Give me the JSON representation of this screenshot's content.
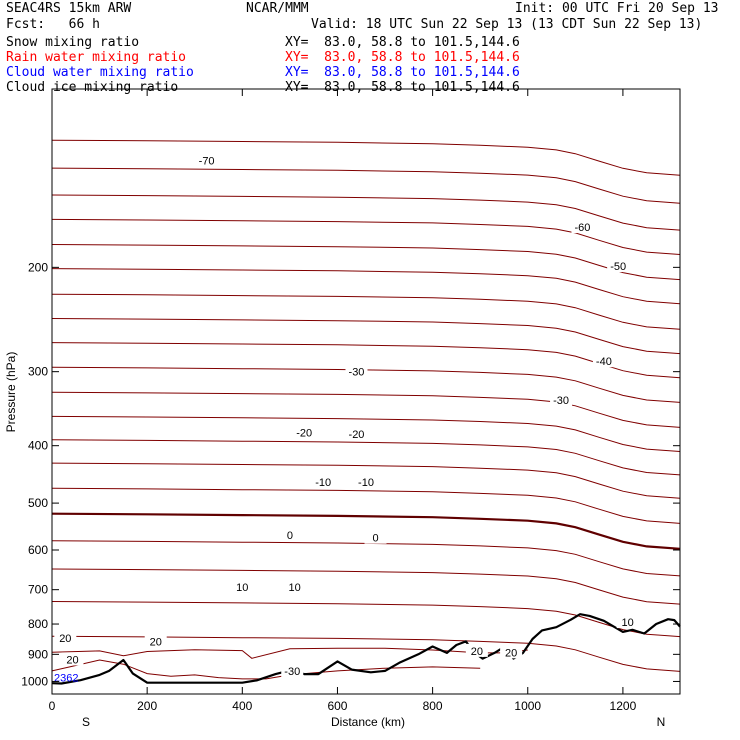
{
  "header": {
    "model": "SEAC4RS 15km ARW",
    "org": "NCAR/MMM",
    "init": "Init: 00 UTC Fri 20 Sep 13",
    "fcst": "Fcst:   66 h",
    "valid": "Valid: 18 UTC Sun 22 Sep 13 (13 CDT Sun 22 Sep 13)"
  },
  "fields": [
    {
      "name": "Snow mixing ratio",
      "xy": "XY=  83.0, 58.8 to 101.5,144.6",
      "color": "#000000"
    },
    {
      "name": "Rain water mixing ratio",
      "xy": "XY=  83.0, 58.8 to 101.5,144.6",
      "color": "#ff0000"
    },
    {
      "name": "Cloud water mixing ratio",
      "xy": "XY=  83.0, 58.8 to 101.5,144.6",
      "color": "#0000ff"
    },
    {
      "name": "Cloud ice mixing ratio",
      "xy": "XY=  83.0, 58.8 to 101.5,144.6",
      "color": "#000000"
    }
  ],
  "chart_data": {
    "type": "line",
    "xlabel": "Distance (km)",
    "ylabel": "Pressure (hPa)",
    "xlim": [
      0,
      1320
    ],
    "ylim": [
      1050,
      100
    ],
    "y_scale": "log",
    "grid": false,
    "left_end_label": "S",
    "right_end_label": "N",
    "x_ticks": [
      0,
      200,
      400,
      600,
      800,
      1000,
      1200
    ],
    "x_tick_labels": [
      "0",
      "200",
      "400",
      "600",
      "800",
      "1000",
      "1200"
    ],
    "y_ticks": [
      200,
      300,
      400,
      500,
      600,
      700,
      800,
      900,
      1000
    ],
    "y_tick_labels": [
      "200",
      "300",
      "400",
      "500",
      "600",
      "700",
      "800",
      "900",
      "1000"
    ],
    "contour_color": "#800000",
    "zero_contour_color": "#600000",
    "terrain_color": "#000000",
    "isotherms_start_p": [
      122,
      136,
      151,
      166,
      183,
      201,
      222,
      244,
      268,
      295,
      325,
      357,
      391,
      428,
      472,
      521,
      579,
      646,
      733,
      839
    ],
    "isotherm_x": [
      0,
      200,
      400,
      600,
      800,
      900,
      1000,
      1060,
      1100,
      1150,
      1200,
      1250,
      1320
    ],
    "isotherm_dp": [
      0,
      1.5,
      3.5,
      5.5,
      9,
      13,
      18,
      25,
      35,
      55,
      75,
      88,
      95
    ],
    "isotherms_warm": [
      {
        "x": [
          0,
          100,
          150,
          200,
          300,
          400,
          420,
          500,
          600,
          700,
          800,
          900,
          950,
          1000
        ],
        "p": [
          893,
          888,
          905,
          890,
          884,
          887,
          914,
          881,
          879,
          879,
          885,
          895,
          895,
          885
        ]
      },
      {
        "x": [
          0,
          50,
          100,
          150,
          200,
          250,
          300,
          350,
          400,
          450,
          500,
          600,
          700,
          800,
          900
        ],
        "p": [
          960,
          940,
          920,
          935,
          970,
          980,
          975,
          985,
          990,
          990,
          975,
          960,
          950,
          945,
          950
        ]
      }
    ],
    "isotherm_labels": [
      {
        "text": "-70",
        "x": 325,
        "p": 132
      },
      {
        "text": "-60",
        "x": 1115,
        "p": 171
      },
      {
        "text": "-50",
        "x": 1190,
        "p": 199
      },
      {
        "text": "-40",
        "x": 1160,
        "p": 288
      },
      {
        "text": "-30",
        "x": 640,
        "p": 300
      },
      {
        "text": "-30",
        "x": 1070,
        "p": 335
      },
      {
        "text": "-20",
        "x": 530,
        "p": 380
      },
      {
        "text": "-20",
        "x": 640,
        "p": 382
      },
      {
        "text": "-10",
        "x": 570,
        "p": 461
      },
      {
        "text": "-10",
        "x": 660,
        "p": 461
      },
      {
        "text": "0",
        "x": 500,
        "p": 566
      },
      {
        "text": "0",
        "x": 680,
        "p": 572
      },
      {
        "text": "10",
        "x": 400,
        "p": 693
      },
      {
        "text": "10",
        "x": 510,
        "p": 693
      },
      {
        "text": "10",
        "x": 1210,
        "p": 794
      },
      {
        "text": "20",
        "x": 28,
        "p": 844
      },
      {
        "text": "20",
        "x": 218,
        "p": 856
      },
      {
        "text": "20",
        "x": 893,
        "p": 888
      },
      {
        "text": "20",
        "x": 965,
        "p": 893
      },
      {
        "text": "20",
        "x": 43,
        "p": 918
      },
      {
        "text": "-30",
        "x": 505,
        "p": 961
      }
    ],
    "terrain": {
      "x": [
        0,
        20,
        60,
        100,
        120,
        150,
        170,
        200,
        250,
        300,
        350,
        400,
        430,
        470,
        500,
        530,
        560,
        600,
        630,
        670,
        700,
        730,
        770,
        800,
        830,
        850,
        870,
        885,
        905,
        930,
        950,
        970,
        990,
        1010,
        1030,
        1060,
        1090,
        1110,
        1130,
        1160,
        1200,
        1220,
        1245,
        1270,
        1295,
        1308,
        1320
      ],
      "p": [
        1007,
        1008,
        995,
        975,
        960,
        920,
        970,
        1005,
        1005,
        1005,
        1005,
        1005,
        996,
        972,
        958,
        972,
        972,
        925,
        955,
        965,
        960,
        930,
        900,
        873,
        895,
        868,
        856,
        890,
        915,
        895,
        875,
        915,
        895,
        848,
        820,
        810,
        787,
        770,
        775,
        790,
        825,
        818,
        830,
        800,
        785,
        788,
        808
      ]
    },
    "station_label": {
      "text": "2362",
      "x": 30,
      "p": 985,
      "color": "#0000ff"
    }
  }
}
